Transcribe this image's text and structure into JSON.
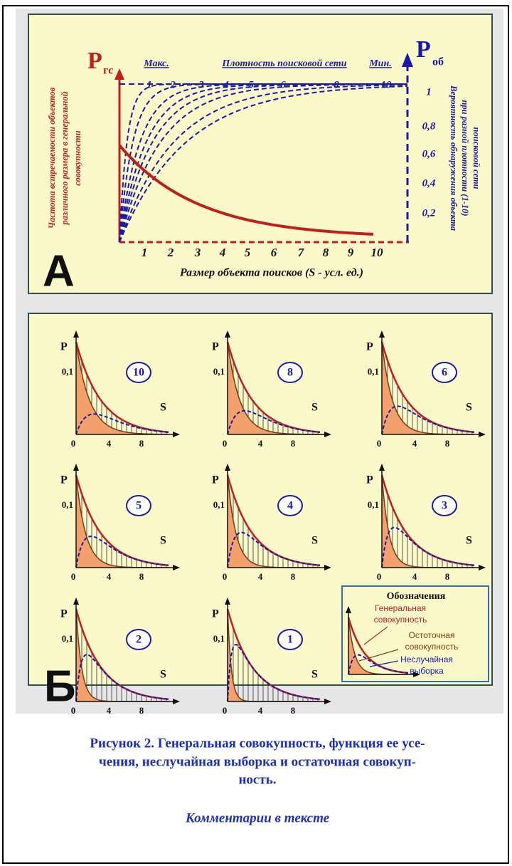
{
  "panel_a": {
    "letter": "А",
    "y_left_label": "P",
    "y_left_sub": "гс",
    "y_right_label": "P",
    "y_right_sub": "об",
    "top_max": "Макс.",
    "top_title": "Плотность поисковой сети",
    "top_min": "Мин.",
    "density_ticks": [
      "1",
      "2",
      "3",
      "4",
      "5",
      "6",
      "8",
      "10"
    ],
    "right_ticks": [
      "1",
      "0,8",
      "0,6",
      "0,4",
      "0,2"
    ],
    "x_ticks": [
      "1",
      "2",
      "3",
      "4",
      "5",
      "6",
      "7",
      "8",
      "9",
      "10"
    ],
    "x_label": "Размер объекта поисков (S  - усл. ед.)",
    "left_axis_title": [
      "Частота встречаемости объектов",
      "различного размера в генеральной",
      "совокупности"
    ],
    "right_axis_title": [
      "Вероятность обнаружения объекта",
      "при разной плотности (1-10)",
      "поисковой сети"
    ]
  },
  "panel_b": {
    "letter": "Б",
    "charts": [
      {
        "badge": "10",
        "y_label": "P",
        "y_tick": "0,1",
        "x_label": "S",
        "x_ticks": [
          "0",
          "4",
          "8"
        ]
      },
      {
        "badge": "8",
        "y_label": "P",
        "y_tick": "0,1",
        "x_label": "S",
        "x_ticks": [
          "0",
          "4",
          "8"
        ]
      },
      {
        "badge": "6",
        "y_label": "P",
        "y_tick": "0,1",
        "x_label": "S",
        "x_ticks": [
          "0",
          "4",
          "8"
        ]
      },
      {
        "badge": "5",
        "y_label": "P",
        "y_tick": "0,1",
        "x_label": "S",
        "x_ticks": [
          "0",
          "4",
          "8"
        ]
      },
      {
        "badge": "4",
        "y_label": "P",
        "y_tick": "0,1",
        "x_label": "S",
        "x_ticks": [
          "0",
          "4",
          "8"
        ]
      },
      {
        "badge": "3",
        "y_label": "P",
        "y_tick": "0,1",
        "x_label": "S",
        "x_ticks": [
          "0",
          "4",
          "8"
        ]
      },
      {
        "badge": "2",
        "y_label": "P",
        "y_tick": "0,1",
        "x_label": "S",
        "x_ticks": [
          "0",
          "4",
          "8"
        ]
      },
      {
        "badge": "1",
        "y_label": "P",
        "y_tick": "0,1",
        "x_label": "S",
        "x_ticks": [
          "0",
          "4",
          "8"
        ]
      }
    ],
    "legend": {
      "title": "Обозначения",
      "items": [
        [
          "Генеральная",
          "совокупность"
        ],
        [
          "Остоточная",
          "совокупность"
        ],
        [
          "Неслучайная",
          "выборка"
        ]
      ]
    }
  },
  "caption": {
    "title": [
      "Рисунок 2. Генеральная совокупность, функция ее усе-",
      "чения, неслучайная выборка и остаточная совокуп-",
      "ность."
    ],
    "comment": "Комментарии в тексте"
  }
}
